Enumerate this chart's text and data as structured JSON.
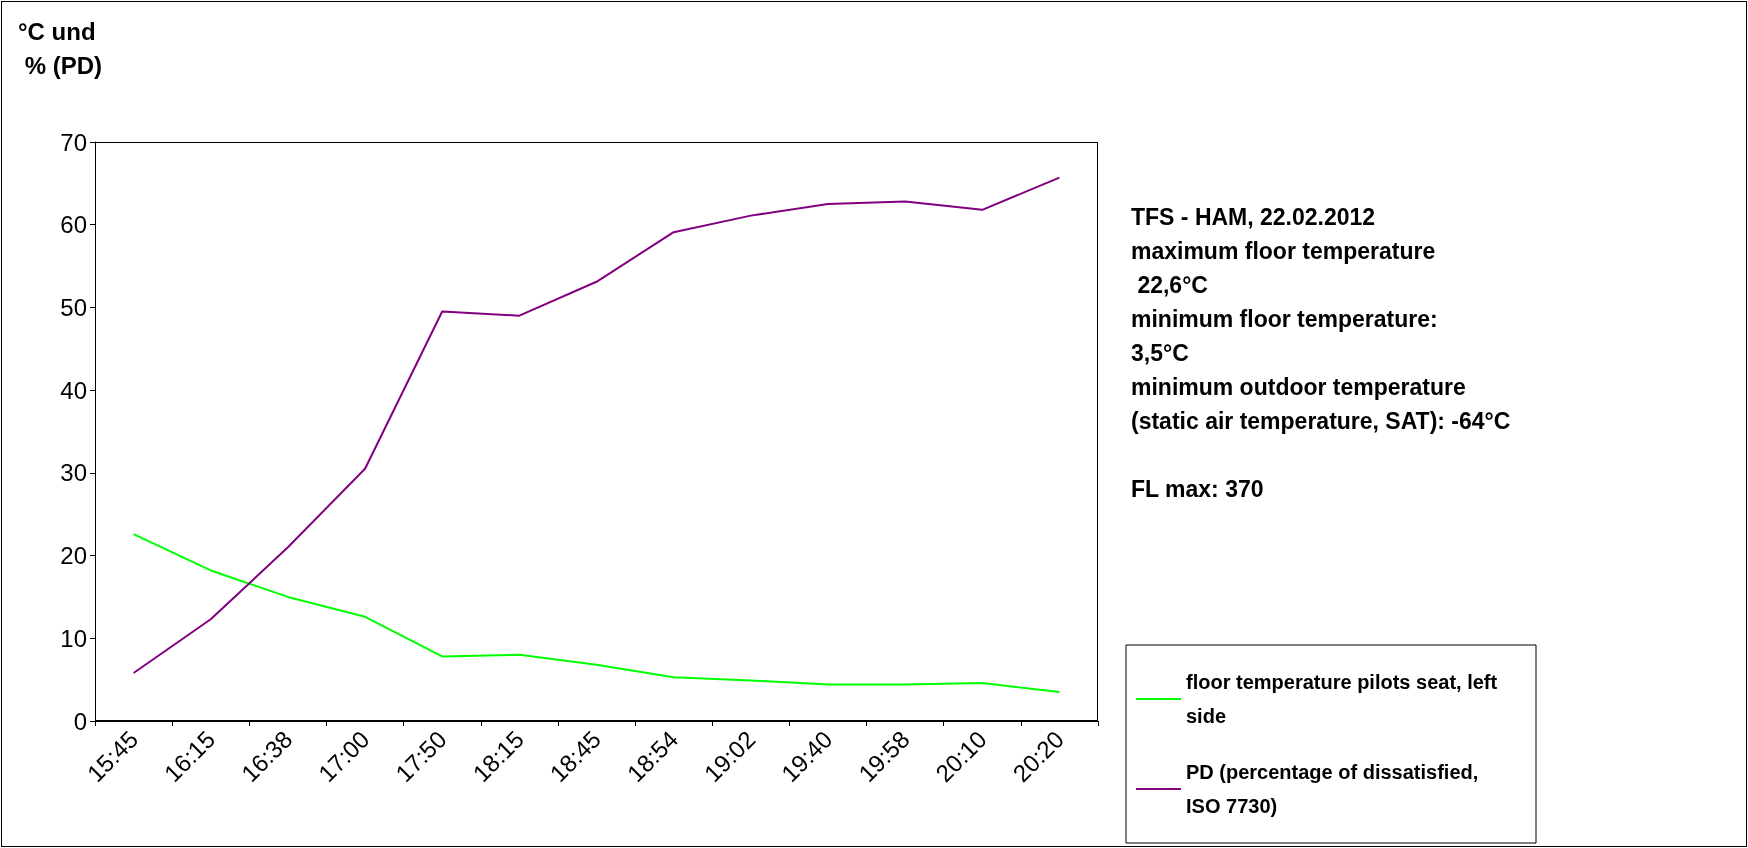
{
  "chart_data": {
    "type": "line",
    "ylabel": "°C und\n % (PD)",
    "categories": [
      "15:45",
      "16:15",
      "16:38",
      "17:00",
      "17:50",
      "18:15",
      "18:45",
      "18:54",
      "19:02",
      "19:40",
      "19:58",
      "20:10",
      "20:20"
    ],
    "series": [
      {
        "name": "floor temperature pilots seat, left side",
        "color": "#00ff00",
        "values": [
          22.6,
          18.2,
          15.0,
          12.6,
          7.8,
          8.0,
          6.8,
          5.3,
          4.9,
          4.4,
          4.4,
          4.6,
          3.5
        ]
      },
      {
        "name": "PD (percentage of dissatisfied, ISO 7730)",
        "color": "#800080",
        "values": [
          5.8,
          12.3,
          21.0,
          30.5,
          49.5,
          49.0,
          53.1,
          59.1,
          61.1,
          62.5,
          62.8,
          61.8,
          65.7
        ]
      }
    ],
    "ylim": [
      0,
      70
    ],
    "yticks": [
      0,
      10,
      20,
      30,
      40,
      50,
      60,
      70
    ],
    "grid": false,
    "legend": "right",
    "marker": "none",
    "line_style": "solid",
    "annotations": [
      "TFS - HAM, 22.02.2012\nmaximum floor temperature\n 22,6°C\nminimum floor temperature:\n3,5°C\nminimum outdoor temperature\n(static air temperature, SAT): -64°C",
      "FL max: 370"
    ]
  }
}
